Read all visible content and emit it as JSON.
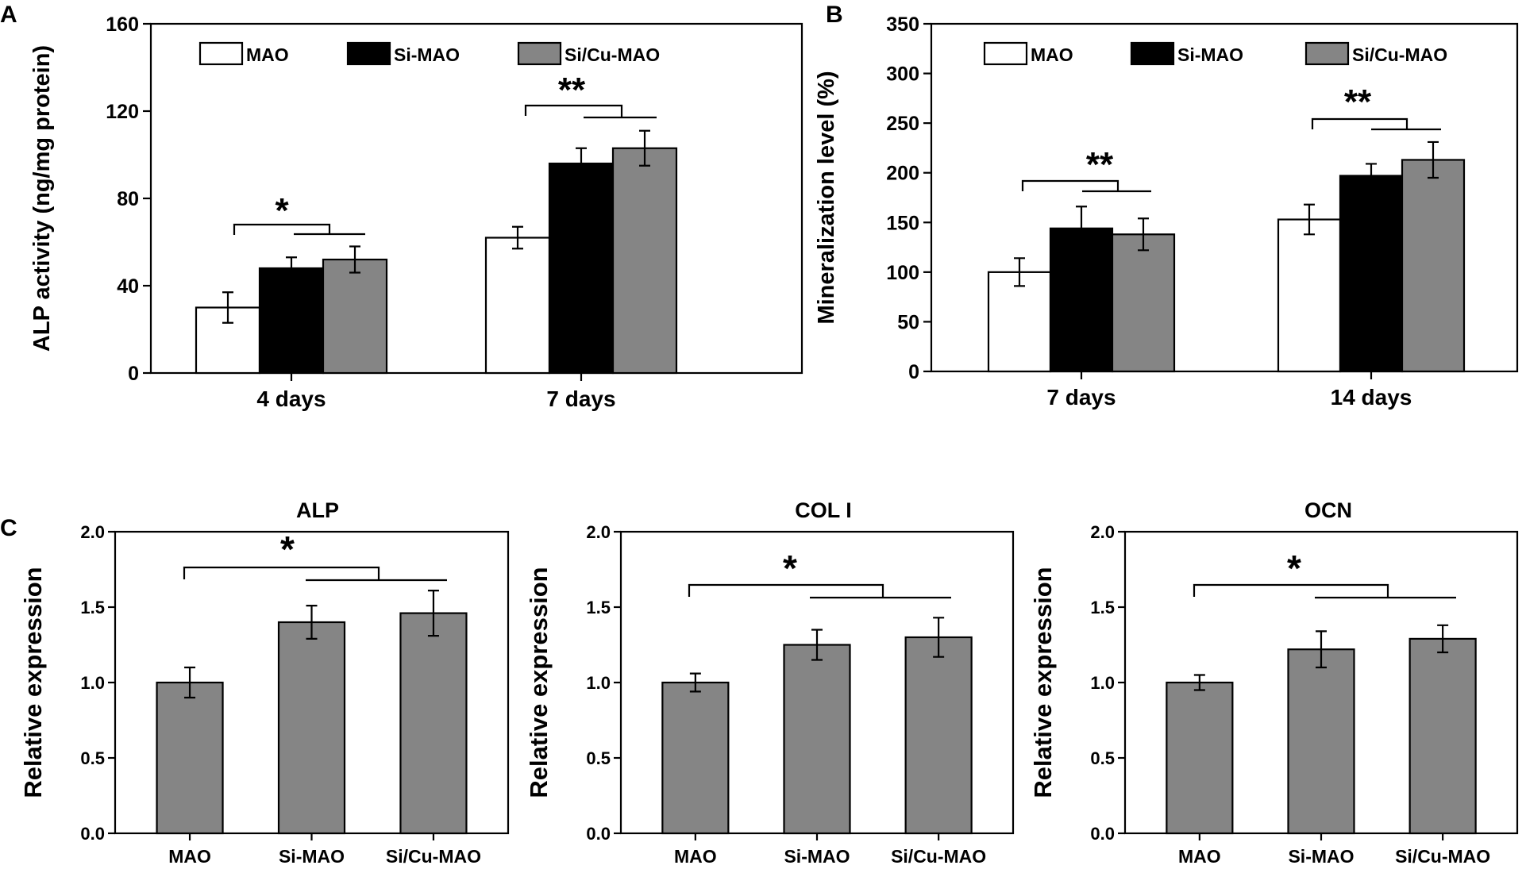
{
  "figure": {
    "panels": {
      "A": "A",
      "B": "B",
      "C": "C"
    }
  },
  "colors": {
    "MAO": "#ffffff",
    "Si-MAO": "#000000",
    "Si/Cu-MAO": "#858585",
    "expression_bar": "#858585"
  },
  "chart_data": [
    {
      "id": "A",
      "type": "bar",
      "title": "",
      "xlabel": "",
      "ylabel": "ALP activity (ng/mg protein)",
      "ylim": [
        0,
        160
      ],
      "yticks": [
        0,
        40,
        80,
        120,
        160
      ],
      "categories": [
        "4 days",
        "7 days"
      ],
      "legend": [
        "MAO",
        "Si-MAO",
        "Si/Cu-MAO"
      ],
      "legend_position": "top",
      "series": [
        {
          "name": "MAO",
          "values": [
            30,
            62
          ],
          "errors": [
            7,
            5
          ]
        },
        {
          "name": "Si-MAO",
          "values": [
            48,
            96
          ],
          "errors": [
            5,
            7
          ]
        },
        {
          "name": "Si/Cu-MAO",
          "values": [
            52,
            103
          ],
          "errors": [
            6,
            8
          ]
        }
      ],
      "annotations": [
        {
          "category": 0,
          "label": "*"
        },
        {
          "category": 1,
          "label": "**"
        }
      ]
    },
    {
      "id": "B",
      "type": "bar",
      "title": "",
      "xlabel": "",
      "ylabel": "Mineralization level (%)",
      "ylim": [
        0,
        350
      ],
      "yticks": [
        0,
        50,
        100,
        150,
        200,
        250,
        300,
        350
      ],
      "categories": [
        "7 days",
        "14 days"
      ],
      "legend": [
        "MAO",
        "Si-MAO",
        "Si/Cu-MAO"
      ],
      "legend_position": "top",
      "series": [
        {
          "name": "MAO",
          "values": [
            100,
            153
          ],
          "errors": [
            14,
            15
          ]
        },
        {
          "name": "Si-MAO",
          "values": [
            144,
            197
          ],
          "errors": [
            22,
            12
          ]
        },
        {
          "name": "Si/Cu-MAO",
          "values": [
            138,
            213
          ],
          "errors": [
            16,
            18
          ]
        }
      ],
      "annotations": [
        {
          "category": 0,
          "label": "**"
        },
        {
          "category": 1,
          "label": "**"
        }
      ]
    },
    {
      "id": "C1",
      "type": "bar",
      "title": "ALP",
      "xlabel": "",
      "ylabel": "Relative expression",
      "ylim": [
        0,
        2
      ],
      "yticks": [
        "0.0",
        "0.5",
        "1.0",
        "1.5",
        "2.0"
      ],
      "categories": [
        "MAO",
        "Si-MAO",
        "Si/Cu-MAO"
      ],
      "values": [
        1.0,
        1.4,
        1.46
      ],
      "errors": [
        0.1,
        0.11,
        0.15
      ],
      "annotations": [
        {
          "label": "*"
        }
      ]
    },
    {
      "id": "C2",
      "type": "bar",
      "title": "COL I",
      "xlabel": "",
      "ylabel": "Relative expression",
      "ylim": [
        0,
        2
      ],
      "yticks": [
        "0.0",
        "0.5",
        "1.0",
        "1.5",
        "2.0"
      ],
      "categories": [
        "MAO",
        "Si-MAO",
        "Si/Cu-MAO"
      ],
      "values": [
        1.0,
        1.25,
        1.3
      ],
      "errors": [
        0.06,
        0.1,
        0.13
      ],
      "annotations": [
        {
          "label": "*"
        }
      ]
    },
    {
      "id": "C3",
      "type": "bar",
      "title": "OCN",
      "xlabel": "",
      "ylabel": "Relative expression",
      "ylim": [
        0,
        2
      ],
      "yticks": [
        "0.0",
        "0.5",
        "1.0",
        "1.5",
        "2.0"
      ],
      "categories": [
        "MAO",
        "Si-MAO",
        "Si/Cu-MAO"
      ],
      "values": [
        1.0,
        1.22,
        1.29
      ],
      "errors": [
        0.05,
        0.12,
        0.09
      ],
      "annotations": [
        {
          "label": "*"
        }
      ]
    }
  ]
}
